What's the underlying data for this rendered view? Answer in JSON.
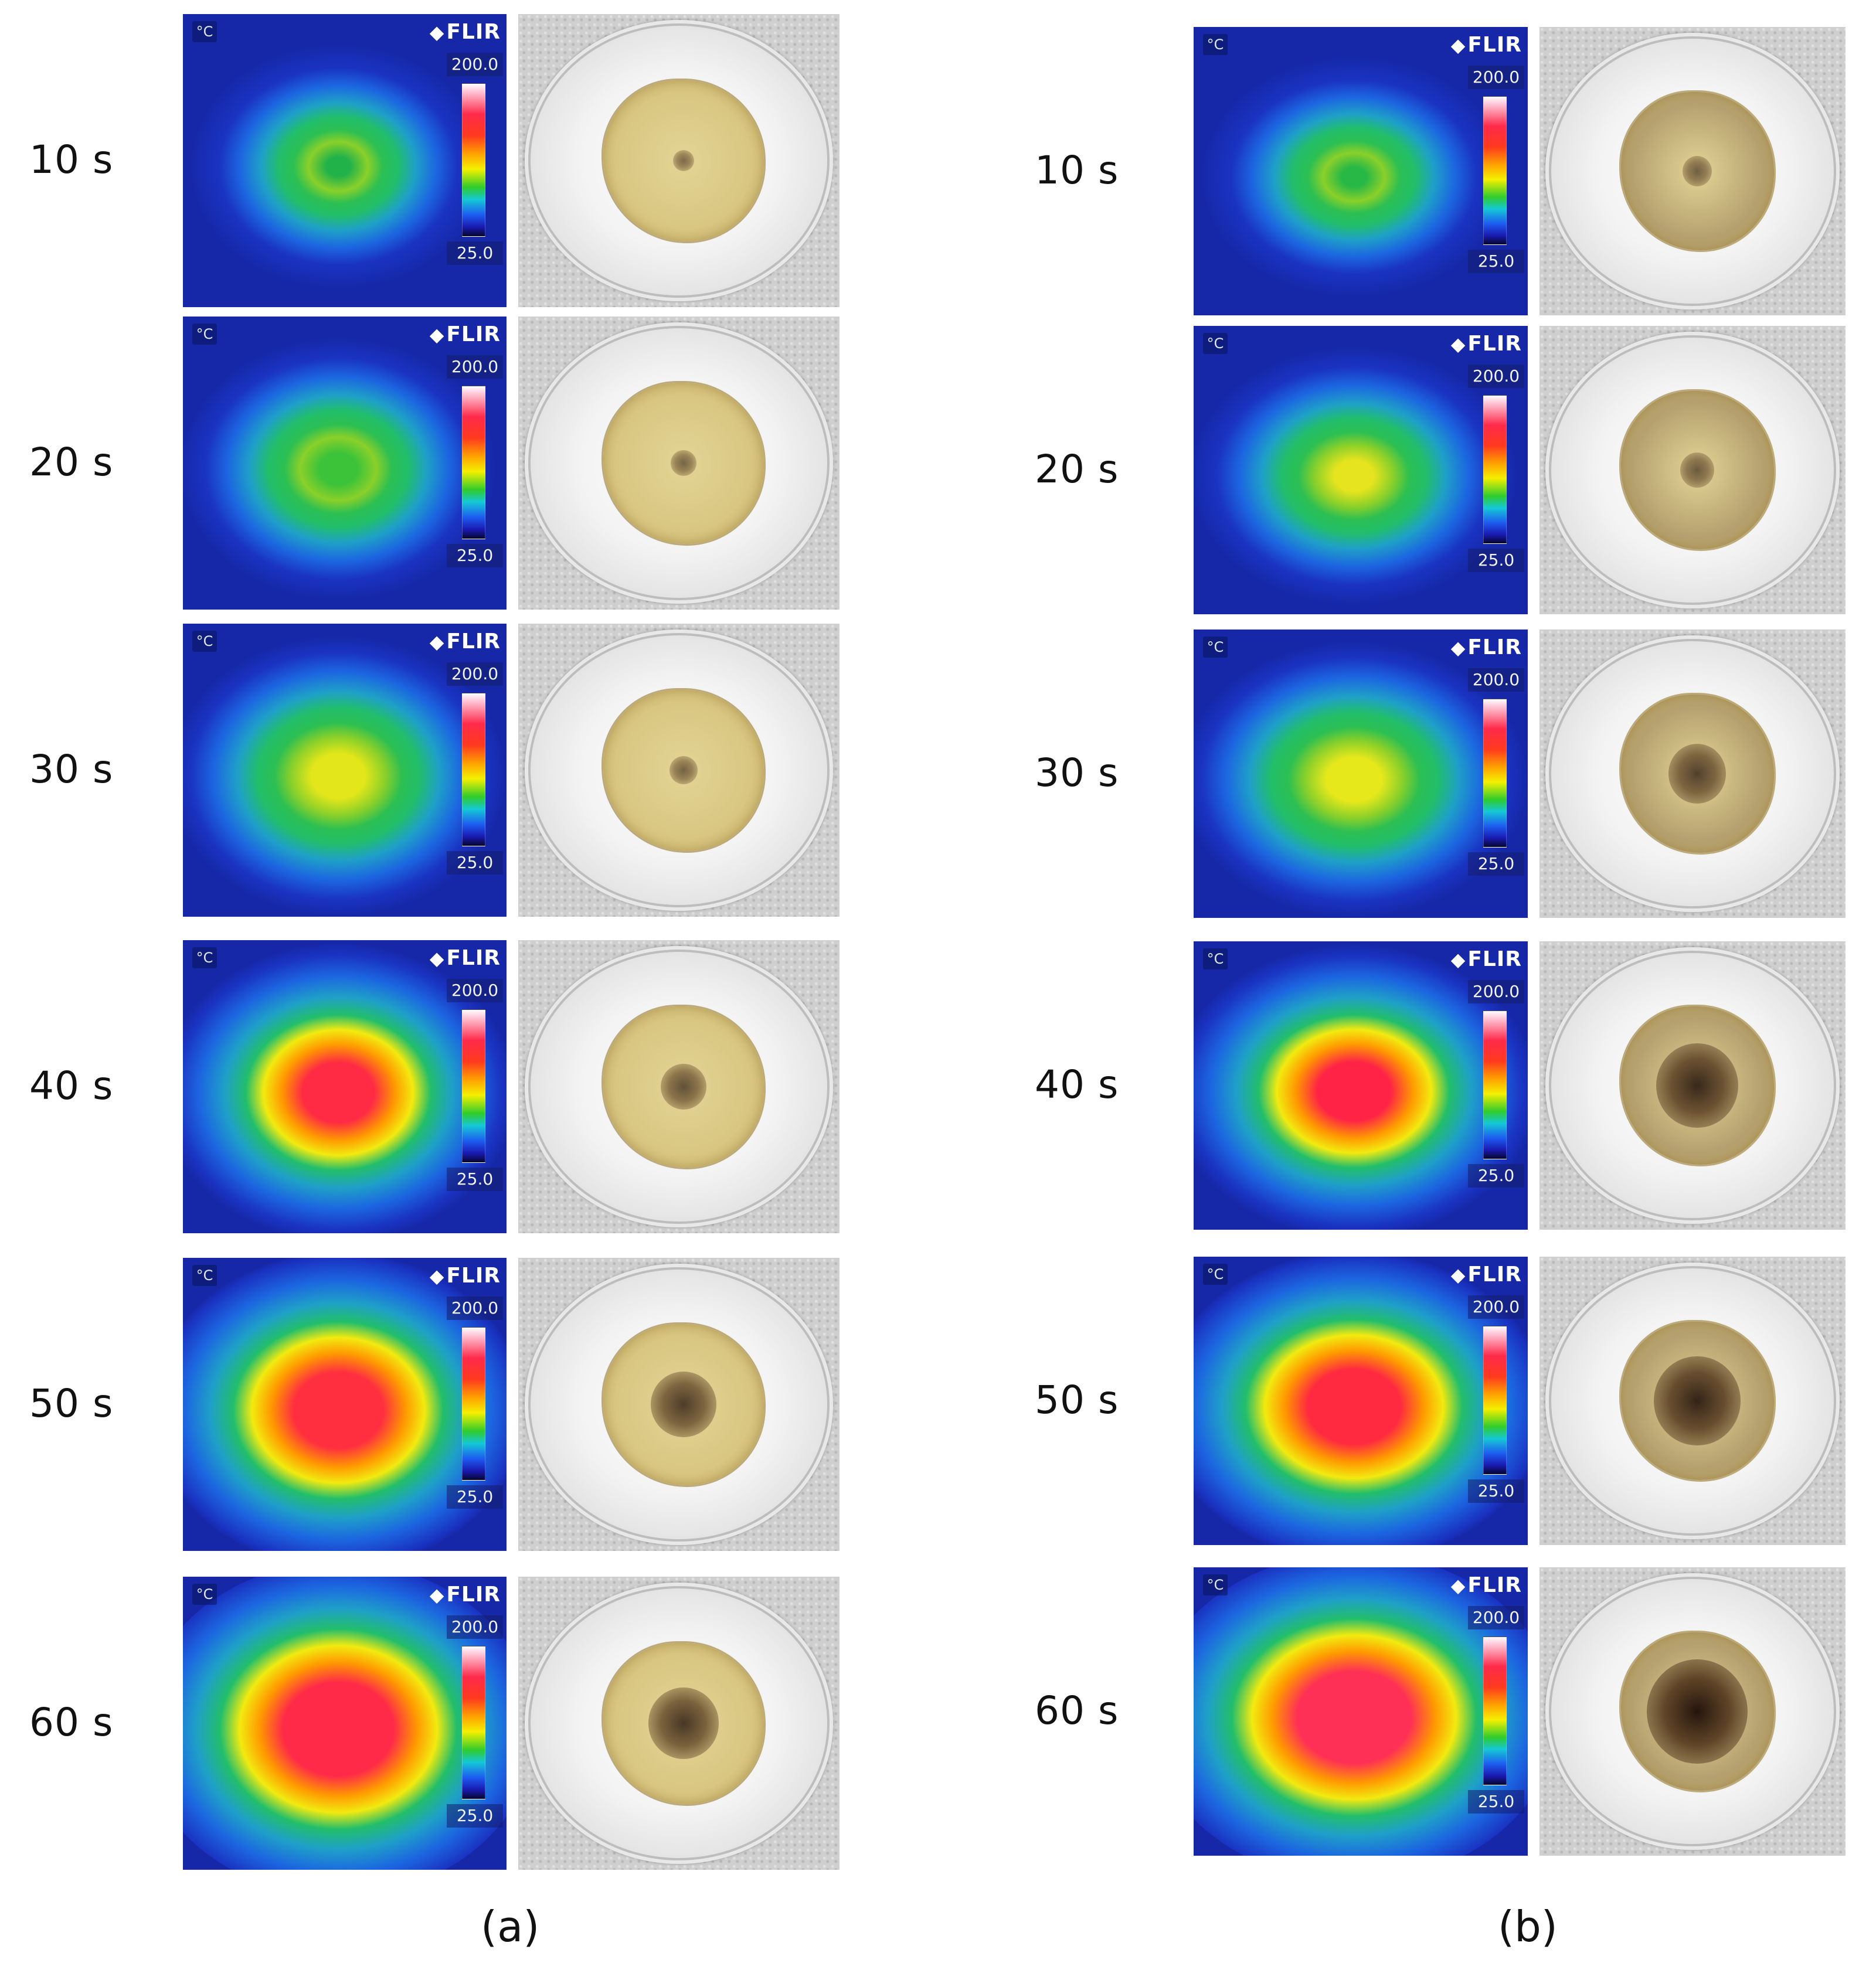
{
  "panels": [
    {
      "caption": "(a)",
      "rows": [
        {
          "time": "10 s",
          "unit": "°C",
          "logo": "FLIR",
          "max": "200.0",
          "min": "25.0",
          "peak_color": "#22b24a",
          "char_level": 0.05
        },
        {
          "time": "20 s",
          "unit": "°C",
          "logo": "FLIR",
          "max": "200.0",
          "min": "25.0",
          "peak_color": "#3cc33a",
          "char_level": 0.1
        },
        {
          "time": "30 s",
          "unit": "°C",
          "logo": "FLIR",
          "max": "200.0",
          "min": "25.0",
          "peak_color": "#e2e61a",
          "char_level": 0.12
        },
        {
          "time": "40 s",
          "unit": "°C",
          "logo": "FLIR",
          "max": "200.0",
          "min": "25.0",
          "peak_color": "#ff2a44",
          "char_level": 0.3
        },
        {
          "time": "50 s",
          "unit": "°C",
          "logo": "FLIR",
          "max": "200.0",
          "min": "25.0",
          "peak_color": "#ff2f40",
          "char_level": 0.5
        },
        {
          "time": "60 s",
          "unit": "°C",
          "logo": "FLIR",
          "max": "200.0",
          "min": "25.0",
          "peak_color": "#ff2a48",
          "char_level": 0.55
        }
      ]
    },
    {
      "caption": "(b)",
      "rows": [
        {
          "time": "10 s",
          "unit": "°C",
          "logo": "FLIR",
          "max": "200.0",
          "min": "25.0",
          "peak_color": "#27b846",
          "char_level": 0.15
        },
        {
          "time": "20 s",
          "unit": "°C",
          "logo": "FLIR",
          "max": "200.0",
          "min": "25.0",
          "peak_color": "#e6e41e",
          "char_level": 0.2
        },
        {
          "time": "30 s",
          "unit": "°C",
          "logo": "FLIR",
          "max": "200.0",
          "min": "25.0",
          "peak_color": "#e6e81c",
          "char_level": 0.45
        },
        {
          "time": "40 s",
          "unit": "°C",
          "logo": "FLIR",
          "max": "200.0",
          "min": "25.0",
          "peak_color": "#ff2446",
          "char_level": 0.7
        },
        {
          "time": "50 s",
          "unit": "°C",
          "logo": "FLIR",
          "max": "200.0",
          "min": "25.0",
          "peak_color": "#ff2a40",
          "char_level": 0.75
        },
        {
          "time": "60 s",
          "unit": "°C",
          "logo": "FLIR",
          "max": "200.0",
          "min": "25.0",
          "peak_color": "#ff3055",
          "char_level": 0.9
        }
      ]
    }
  ]
}
